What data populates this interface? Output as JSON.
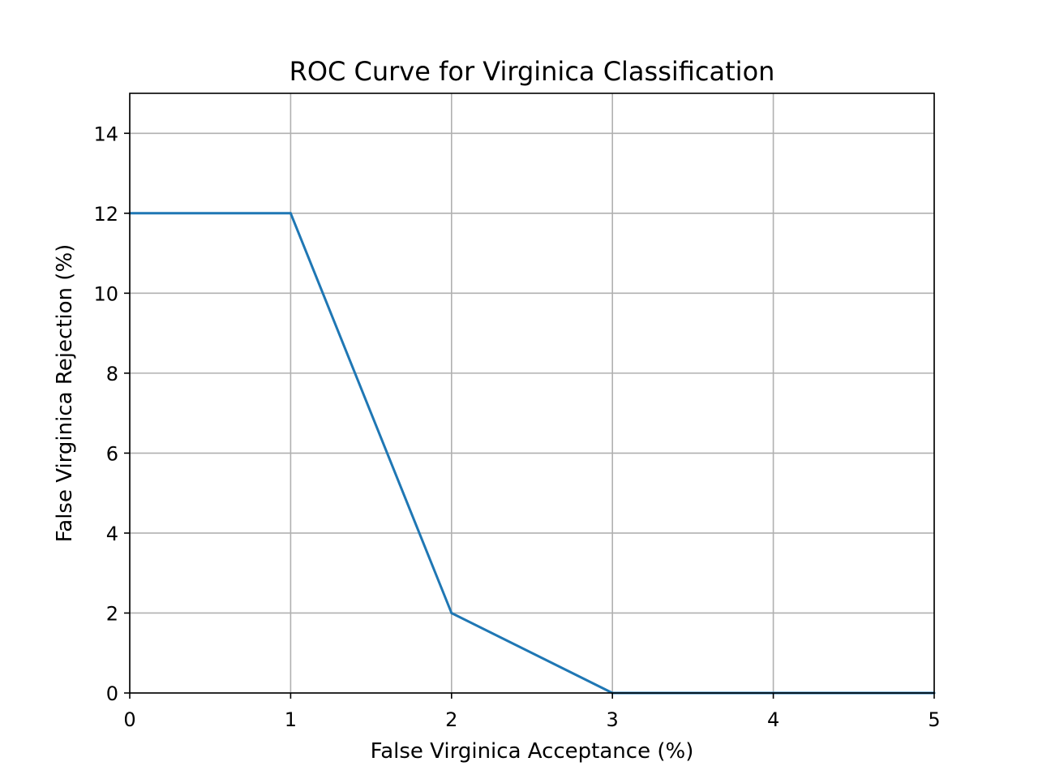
{
  "chart_data": {
    "type": "line",
    "title": "ROC Curve for Virginica Classification",
    "xlabel": "False Virginica Acceptance (%)",
    "ylabel": "False Virginica Rejection (%)",
    "xlim": [
      0,
      5
    ],
    "ylim": [
      0,
      15
    ],
    "xticks": [
      "0",
      "1",
      "2",
      "3",
      "4",
      "5"
    ],
    "yticks": [
      "0",
      "2",
      "4",
      "6",
      "8",
      "10",
      "12",
      "14"
    ],
    "grid": true,
    "series": [
      {
        "x": [
          0,
          1,
          2,
          3,
          4,
          5
        ],
        "y": [
          12,
          12,
          2,
          0,
          0,
          0
        ],
        "color": "#1f77b4"
      }
    ]
  }
}
